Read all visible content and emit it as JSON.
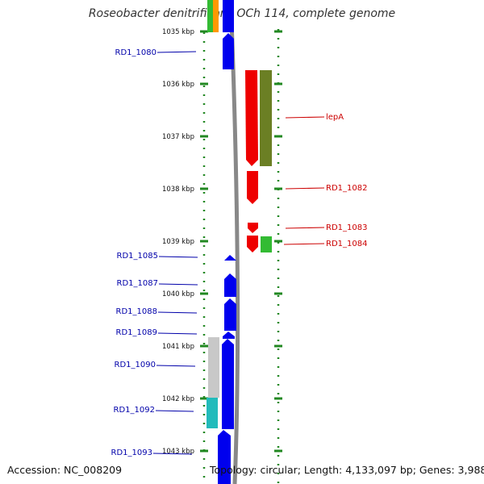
{
  "title": "Roseobacter denitrificans OCh 114, complete genome",
  "accession": "Accession: NC_008209",
  "summary": "Topology: circular; Length: 4,133,097 bp; Genes: 3,988",
  "ruler": {
    "ticks": [
      {
        "kbp": 1035,
        "label": "1035 kbp"
      },
      {
        "kbp": 1036,
        "label": "1036 kbp"
      },
      {
        "kbp": 1037,
        "label": "1037 kbp"
      },
      {
        "kbp": 1038,
        "label": "1038 kbp"
      },
      {
        "kbp": 1039,
        "label": "1039 kbp"
      },
      {
        "kbp": 1040,
        "label": "1040 kbp"
      },
      {
        "kbp": 1041,
        "label": "1041 kbp"
      },
      {
        "kbp": 1042,
        "label": "1042 kbp"
      },
      {
        "kbp": 1043,
        "label": "1043 kbp"
      }
    ]
  },
  "colors": {
    "reverse_gene": "#0000ee",
    "forward_gene": "#ee0000",
    "olive": "#6b7f24",
    "green": "#33bb33",
    "cyan": "#22bbbb",
    "gray_feature": "#c8c8c8",
    "orange": "#ff9900",
    "dot_green": "#228822",
    "backbone": "#888888",
    "label_blue": "#0000aa",
    "label_red": "#cc0000"
  },
  "labels_left": [
    {
      "name": "RD1_1080"
    },
    {
      "name": "RD1_1085"
    },
    {
      "name": "RD1_1087"
    },
    {
      "name": "RD1_1088"
    },
    {
      "name": "RD1_1089"
    },
    {
      "name": "RD1_1090"
    },
    {
      "name": "RD1_1092"
    },
    {
      "name": "RD1_1093"
    }
  ],
  "labels_right": [
    {
      "name": "lepA"
    },
    {
      "name": "RD1_1082"
    },
    {
      "name": "RD1_1083"
    },
    {
      "name": "RD1_1084"
    }
  ]
}
